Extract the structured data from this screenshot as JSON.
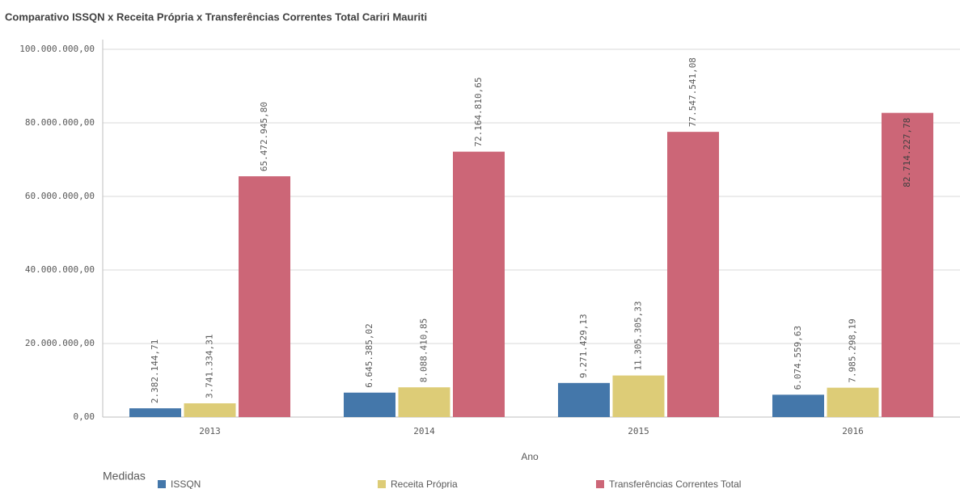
{
  "chart_data": {
    "type": "bar",
    "title": "Comparativo ISSQN x Receita Própria x Transferências Correntes Total Cariri Mauriti",
    "x_label": "Ano",
    "legend_title": "Medidas",
    "legend": "bottom-left",
    "grid": true,
    "categories": [
      "2013",
      "2014",
      "2015",
      "2016"
    ],
    "series": [
      {
        "name": "ISSQN",
        "color": "#4477aa",
        "values": [
          2382144.71,
          6645385.02,
          9271429.13,
          6074559.63
        ],
        "value_labels": [
          "2.382.144,71",
          "6.645.385,02",
          "9.271.429,13",
          "6.074.559,63"
        ]
      },
      {
        "name": "Receita Própria",
        "color": "#ddcc77",
        "values": [
          3741334.31,
          8088410.85,
          11305305.33,
          7985298.19
        ],
        "value_labels": [
          "3.741.334,31",
          "8.088.410,85",
          "11.305.305,33",
          "7.985.298,19"
        ]
      },
      {
        "name": "Transferências Correntes Total",
        "color": "#cc6677",
        "values": [
          65472945.8,
          72164810.65,
          77547541.08,
          82714227.78
        ],
        "value_labels": [
          "65.472.945,80",
          "72.164.810,65",
          "77.547.541,08",
          "82.714.227,78"
        ]
      }
    ],
    "ylim": [
      0,
      100000000
    ],
    "yticks": [
      {
        "value": 0,
        "label": "0,00"
      },
      {
        "value": 20000000,
        "label": "20.000.000,00"
      },
      {
        "value": 40000000,
        "label": "40.000.000,00"
      },
      {
        "value": 60000000,
        "label": "60.000.000,00"
      },
      {
        "value": 80000000,
        "label": "80.000.000,00"
      },
      {
        "value": 100000000,
        "label": "100.000.000,00"
      }
    ]
  }
}
